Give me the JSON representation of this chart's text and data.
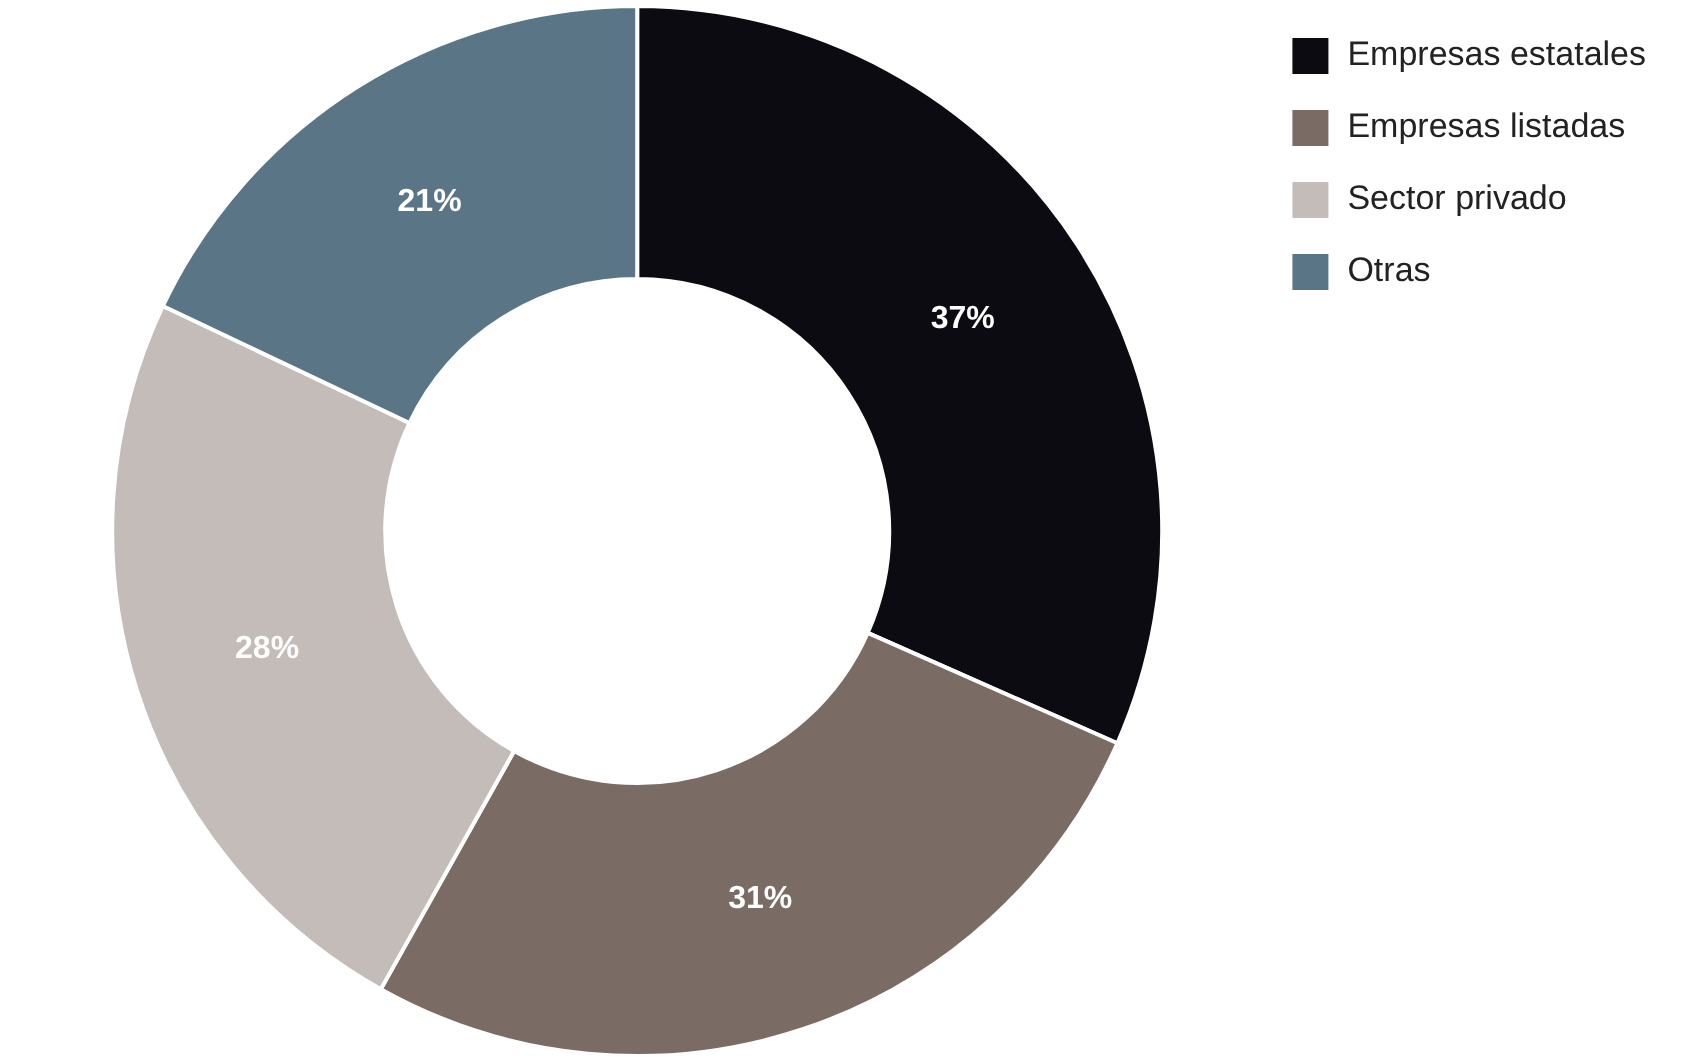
{
  "chart_data": {
    "type": "donut",
    "categories": [
      "Empresas estatales",
      "Empresas listadas",
      "Sector privado",
      "Otras"
    ],
    "values": [
      37,
      31,
      28,
      21
    ],
    "colors": [
      "#0d0b12",
      "#7a6b64",
      "#c4bcb8",
      "#5a7585"
    ],
    "value_labels": [
      "37%",
      "31%",
      "28%",
      "21%"
    ],
    "legend": "top right"
  }
}
